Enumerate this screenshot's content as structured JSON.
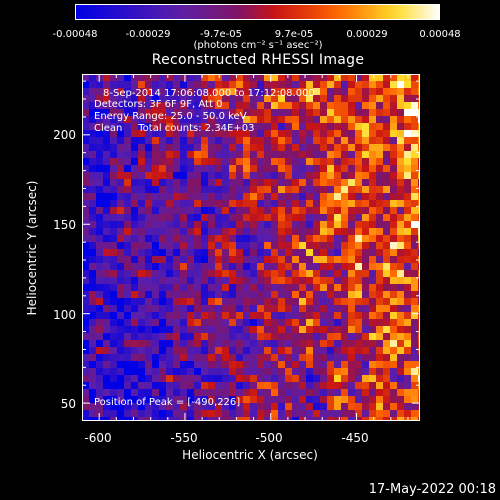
{
  "colorbar": {
    "ticks": [
      "-0.00048",
      "-0.00029",
      "-9.7e-05",
      "9.7e-05",
      "0.00029",
      "0.00048"
    ],
    "unit": "(photons cm⁻² s⁻¹ asec⁻²)"
  },
  "title": "Reconstructed RHESSI Image",
  "annotations": {
    "line1": "8-Sep-2014 17:06:08.000 to 17:12:08.000",
    "line2": "Detectors: 3F 6F 9F, Att 0",
    "line3": "Energy Range: 25.0 - 50.0 keV",
    "line4": "Clean     Total counts: 2.34E+03",
    "peak": "Position of Peak = [-490,226]"
  },
  "footer": "17-May-2022 00:18",
  "chart_data": {
    "type": "heatmap",
    "title": "Reconstructed RHESSI Image",
    "xlabel": "Heliocentric X (arcsec)",
    "ylabel": "Heliocentric Y (arcsec)",
    "xlim": [
      -610,
      -413
    ],
    "ylim": [
      40,
      234
    ],
    "xticks": [
      -600,
      -550,
      -500,
      -450
    ],
    "yticks": [
      50,
      100,
      150,
      200
    ],
    "colorscale": "blue-purple-red-yellow-white",
    "value_range": [
      -0.00048,
      0.00048
    ],
    "peak_position": [
      -490,
      226
    ]
  }
}
